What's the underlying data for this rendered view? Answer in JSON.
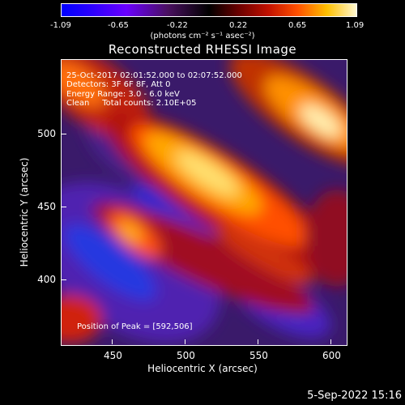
{
  "colorbar": {
    "ticks": [
      "-1.09",
      "-0.65",
      "-0.22",
      "0.22",
      "0.65",
      "1.09"
    ],
    "unit": "(photons cm⁻² s⁻¹ asec⁻²)"
  },
  "title": "Reconstructed RHESSI Image",
  "info": {
    "time": "25-Oct-2017 02:01:52.000 to 02:07:52.000",
    "detectors": "Detectors: 3F 6F 8F, Att 0",
    "energy": "Energy Range: 3.0 - 6.0 keV",
    "clean": "Clean     Total counts: 2.10E+05",
    "peak": "Position of Peak = [592,506]"
  },
  "axes": {
    "x_label": "Heliocentric X (arcsec)",
    "y_label": "Heliocentric Y (arcsec)",
    "x_ticks": [
      "450",
      "500",
      "550",
      "600"
    ],
    "y_ticks": [
      "500",
      "450",
      "400"
    ]
  },
  "footer": {
    "date": "5-Sep-2022 15:16"
  }
}
